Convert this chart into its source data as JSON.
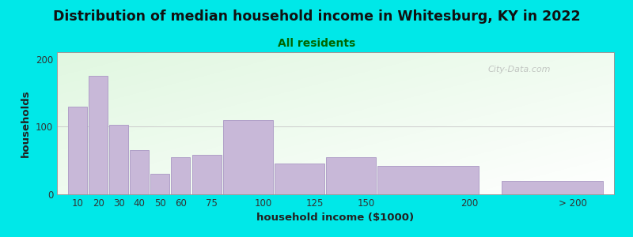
{
  "title": "Distribution of median household income in Whitesburg, KY in 2022",
  "subtitle": "All residents",
  "xlabel": "household income ($1000)",
  "ylabel": "households",
  "background_outer": "#00e8e8",
  "bar_color": "#c8b8d8",
  "bar_edge_color": "#b0a0c8",
  "values": [
    130,
    175,
    103,
    65,
    30,
    55,
    58,
    110,
    45,
    55,
    42,
    20
  ],
  "bar_lefts": [
    5,
    15,
    25,
    35,
    45,
    55,
    65,
    80,
    105,
    130,
    155,
    215
  ],
  "bar_widths": [
    10,
    10,
    10,
    10,
    10,
    10,
    15,
    25,
    25,
    25,
    50,
    50
  ],
  "xlim": [
    0,
    270
  ],
  "ylim": [
    0,
    210
  ],
  "yticks": [
    0,
    100,
    200
  ],
  "title_fontsize": 12.5,
  "subtitle_fontsize": 10,
  "axis_label_fontsize": 9.5,
  "tick_fontsize": 8.5,
  "watermark_text": "City-Data.com",
  "xtick_positions": [
    10,
    20,
    30,
    40,
    50,
    60,
    75,
    100,
    125,
    150,
    200,
    250
  ],
  "xtick_labels": [
    "10",
    "20",
    "30",
    "40",
    "50",
    "60",
    "75",
    "100",
    "125",
    "150",
    "200",
    "> 200"
  ]
}
